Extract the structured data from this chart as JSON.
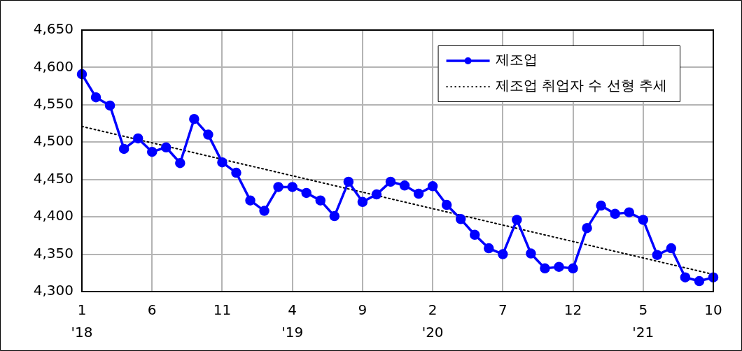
{
  "chart_data": {
    "type": "line",
    "categories": [
      "1\n'18",
      null,
      null,
      null,
      null,
      "6",
      null,
      null,
      null,
      null,
      "11",
      null,
      null,
      null,
      null,
      "4\n'19",
      null,
      null,
      null,
      null,
      "9",
      null,
      null,
      null,
      null,
      "2\n'20",
      null,
      null,
      null,
      null,
      "7",
      null,
      null,
      null,
      null,
      "12",
      null,
      null,
      null,
      null,
      "5\n'21",
      null,
      null,
      null,
      null,
      "10"
    ],
    "series": [
      {
        "name": "제조업",
        "color": "#0000ff",
        "marker": "circle",
        "line_style": "solid",
        "values": [
          4591,
          4560,
          4549,
          4491,
          4505,
          4487,
          4493,
          4472,
          4531,
          4510,
          4473,
          4459,
          4422,
          4408,
          4440,
          4440,
          4432,
          4422,
          4401,
          4447,
          4420,
          4430,
          4447,
          4442,
          4431,
          4441,
          4416,
          4397,
          4376,
          4358,
          4350,
          4396,
          4351,
          4331,
          4333,
          4331,
          4385,
          4415,
          4404,
          4406,
          4396,
          4349,
          4358,
          4319,
          4314,
          4319
        ]
      },
      {
        "name": "제조업 취업자 수 선형 추세",
        "color": "#000000",
        "marker": "none",
        "line_style": "dotted",
        "x": [
          "1\n'18",
          "10"
        ],
        "values": [
          4521,
          4323
        ]
      }
    ],
    "ylim": [
      4300,
      4650
    ],
    "yticks": [
      {
        "value": 4300,
        "label": "4,300"
      },
      {
        "value": 4350,
        "label": "4,350"
      },
      {
        "value": 4400,
        "label": "4,400"
      },
      {
        "value": 4450,
        "label": "4,450"
      },
      {
        "value": 4500,
        "label": "4,500"
      },
      {
        "value": 4550,
        "label": "4,550"
      },
      {
        "value": 4600,
        "label": "4,600"
      },
      {
        "value": 4650,
        "label": "4,650"
      }
    ],
    "grid": true,
    "legend": "top right"
  }
}
